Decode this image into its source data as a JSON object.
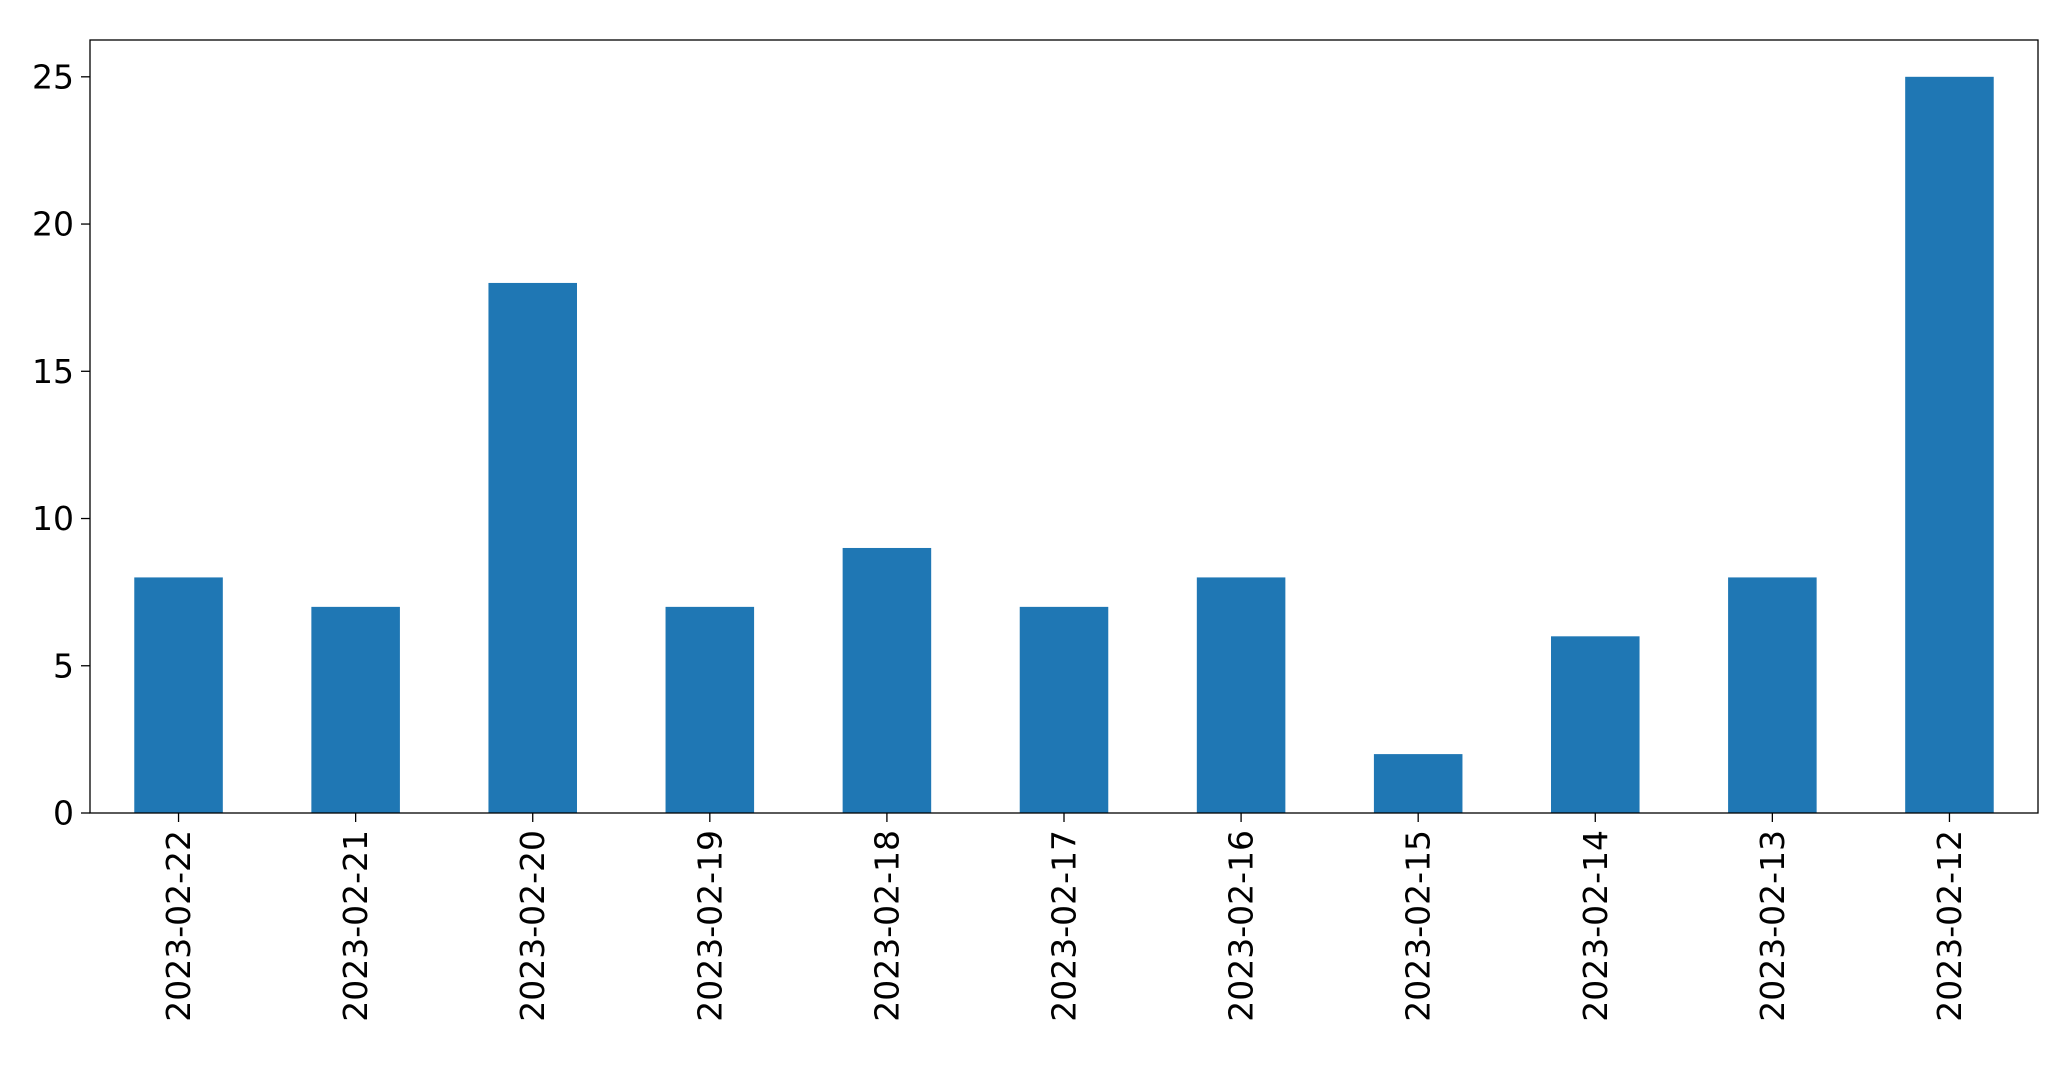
{
  "chart_data": {
    "type": "bar",
    "title": "",
    "xlabel": "",
    "ylabel": "",
    "categories": [
      "2023-02-22",
      "2023-02-21",
      "2023-02-20",
      "2023-02-19",
      "2023-02-18",
      "2023-02-17",
      "2023-02-16",
      "2023-02-15",
      "2023-02-14",
      "2023-02-13",
      "2023-02-12"
    ],
    "values": [
      8,
      7,
      18,
      7,
      9,
      7,
      8,
      2,
      6,
      8,
      25
    ],
    "ylim": [
      0,
      26.25
    ],
    "yticks": [
      0,
      5,
      10,
      15,
      20,
      25
    ],
    "grid": false,
    "legend": "none",
    "bar_color": "#1f77b4"
  }
}
